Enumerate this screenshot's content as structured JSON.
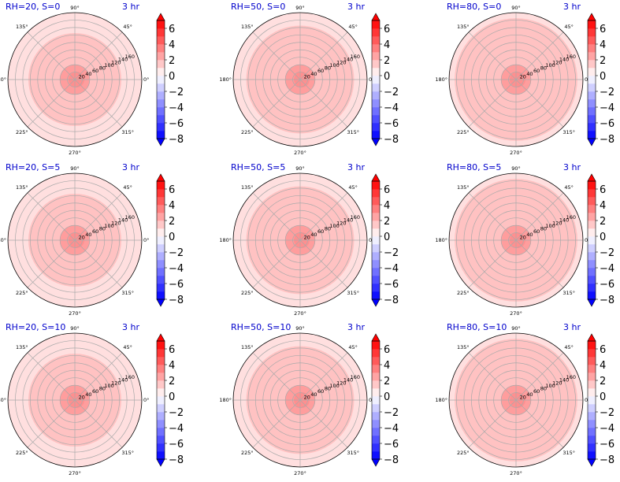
{
  "figure": {
    "time_label": "3 hr",
    "angle_ticks": [
      "0°",
      "45°",
      "90°",
      "135°",
      "180°",
      "225°",
      "270°",
      "315°"
    ],
    "radial_ticks": [
      20,
      40,
      60,
      80,
      100,
      120,
      140,
      160
    ],
    "colorbar": {
      "ticks": [
        6,
        4,
        2,
        0,
        -2,
        -4,
        -6,
        -8
      ],
      "vmin": -8,
      "vmax": 7
    },
    "colors": {
      "title": "#0000cc",
      "outer": "#ffdfdf",
      "middle": "#ffc2c2",
      "inner": "#ff9d9d",
      "grid": "#aaaaaa"
    }
  },
  "chart_data": [
    {
      "type": "heatmap",
      "title": "RH=20, S=0",
      "panel_label": "3 hr",
      "rmax": 180,
      "zones": [
        {
          "r_max": 180,
          "level": 0.5
        },
        {
          "r_max": 125,
          "level": 1.5
        },
        {
          "r_max": 40,
          "level": 2.5
        }
      ]
    },
    {
      "type": "heatmap",
      "title": "RH=50, S=0",
      "panel_label": "3 hr",
      "rmax": 180,
      "zones": [
        {
          "r_max": 180,
          "level": 0.5
        },
        {
          "r_max": 145,
          "level": 1.5
        },
        {
          "r_max": 40,
          "level": 2.5
        }
      ]
    },
    {
      "type": "heatmap",
      "title": "RH=80, S=0",
      "panel_label": "3 hr",
      "rmax": 180,
      "zones": [
        {
          "r_max": 180,
          "level": 0.5
        },
        {
          "r_max": 165,
          "level": 1.5
        },
        {
          "r_max": 40,
          "level": 2.5
        }
      ]
    },
    {
      "type": "heatmap",
      "title": "RH=20, S=5",
      "panel_label": "3 hr",
      "rmax": 180,
      "zones": [
        {
          "r_max": 180,
          "level": 0.5
        },
        {
          "r_max": 125,
          "level": 1.5
        },
        {
          "r_max": 40,
          "level": 2.5
        }
      ]
    },
    {
      "type": "heatmap",
      "title": "RH=50, S=5",
      "panel_label": "3 hr",
      "rmax": 180,
      "zones": [
        {
          "r_max": 180,
          "level": 0.5
        },
        {
          "r_max": 145,
          "level": 1.5
        },
        {
          "r_max": 40,
          "level": 2.5
        }
      ]
    },
    {
      "type": "heatmap",
      "title": "RH=80, S=5",
      "panel_label": "3 hr",
      "rmax": 180,
      "zones": [
        {
          "r_max": 180,
          "level": 0.5
        },
        {
          "r_max": 165,
          "level": 1.5
        },
        {
          "r_max": 40,
          "level": 2.5
        }
      ]
    },
    {
      "type": "heatmap",
      "title": "RH=20, S=10",
      "panel_label": "3 hr",
      "rmax": 180,
      "zones": [
        {
          "r_max": 180,
          "level": 0.5
        },
        {
          "r_max": 125,
          "level": 1.5
        },
        {
          "r_max": 40,
          "level": 2.5
        }
      ]
    },
    {
      "type": "heatmap",
      "title": "RH=50, S=10",
      "panel_label": "3 hr",
      "rmax": 180,
      "zones": [
        {
          "r_max": 180,
          "level": 0.5
        },
        {
          "r_max": 145,
          "level": 1.5
        },
        {
          "r_max": 40,
          "level": 2.5
        }
      ]
    },
    {
      "type": "heatmap",
      "title": "RH=80, S=10",
      "panel_label": "3 hr",
      "rmax": 180,
      "zones": [
        {
          "r_max": 180,
          "level": 0.5
        },
        {
          "r_max": 165,
          "level": 1.5
        },
        {
          "r_max": 40,
          "level": 2.5
        }
      ]
    }
  ]
}
